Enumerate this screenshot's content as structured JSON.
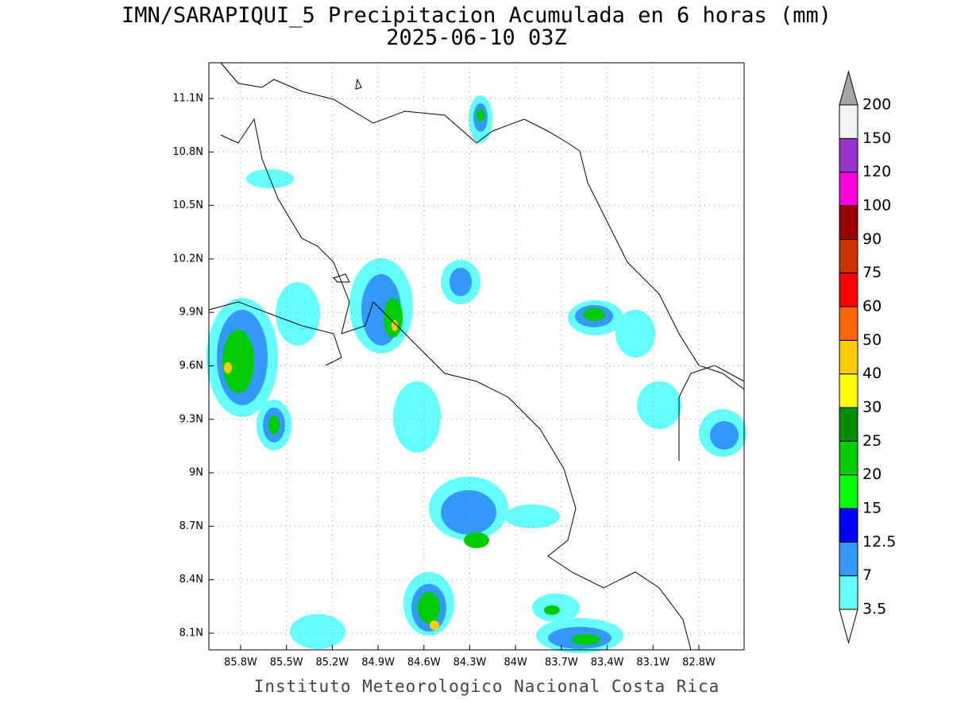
{
  "title": "IMN/SARAPIQUI_5 Precipitacion Acumulada en 6 horas (mm)",
  "subtitle": "2025-06-10 03Z",
  "lat_labels": [
    "11.1N",
    "10.8N",
    "10.5N",
    "10.2N",
    "9.9N",
    "9.6N",
    "9.3N",
    "9N",
    "8.7N",
    "8.4N",
    "8.1N"
  ],
  "lon_labels": [
    "85.8W",
    "85.5W",
    "85.2W",
    "84.9W",
    "84.6W",
    "84.3W",
    "84W",
    "83.7W",
    "83.4W",
    "83.1W",
    "82.8W"
  ],
  "colorbar": {
    "levels": [
      3.5,
      7,
      12.5,
      15,
      20,
      25,
      30,
      40,
      50,
      60,
      75,
      90,
      100,
      120,
      150,
      200
    ],
    "colors": [
      "#ffffff",
      "#66ffff",
      "#3399ff",
      "#0000ff",
      "#00ff00",
      "#00cc00",
      "#008c00",
      "#ffff00",
      "#ffcc00",
      "#ff6600",
      "#ff0000",
      "#cc3300",
      "#990000",
      "#ff00dd",
      "#9933cc",
      "#f4f4f4",
      "#a6a6a6"
    ]
  },
  "credit": "Instituto Meteorologico Nacional Costa Rica"
}
